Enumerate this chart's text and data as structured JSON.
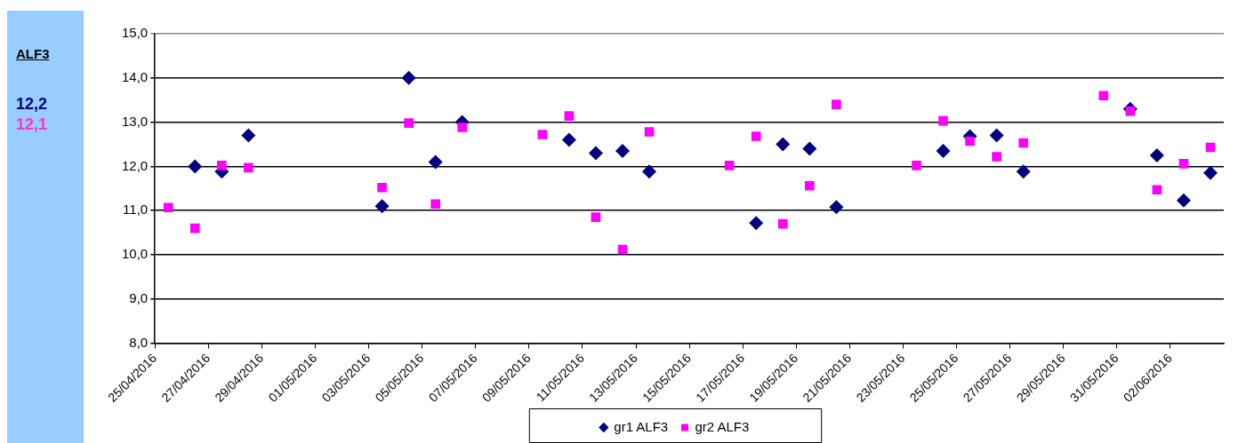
{
  "chart_data": {
    "type": "scatter",
    "annotations": [
      "ALF3",
      "12,2",
      "12,1"
    ],
    "series": [
      {
        "name": "gr1 ALF3",
        "color": "#000080",
        "marker": "diamond",
        "x": [
          "2016-04-26T12:00",
          "2016-04-27T12:00",
          "2016-04-28T12:00",
          "2016-05-03T12:00",
          "2016-05-04T12:00",
          "2016-05-05T12:00",
          "2016-05-06T12:00",
          "2016-05-10T12:00",
          "2016-05-11T12:00",
          "2016-05-12T12:00",
          "2016-05-13T12:00",
          "2016-05-17T12:00",
          "2016-05-18T12:00",
          "2016-05-19T12:00",
          "2016-05-20T12:00",
          "2016-05-24T12:00",
          "2016-05-25T12:00",
          "2016-05-26T12:00",
          "2016-05-27T12:00",
          "2016-05-31T12:00",
          "2016-06-01T12:00",
          "2016-06-02T12:00",
          "2016-06-03T12:00"
        ],
        "values": [
          12.0,
          11.88,
          12.7,
          11.1,
          14.0,
          12.1,
          13.0,
          12.6,
          12.3,
          12.35,
          11.88,
          10.72,
          12.5,
          12.4,
          11.08,
          12.35,
          12.68,
          12.7,
          11.88,
          13.3,
          12.25,
          11.23,
          11.85
        ]
      },
      {
        "name": "gr2 ALF3",
        "color": "#ff00ff",
        "marker": "square",
        "x": [
          "2016-04-25T12:00",
          "2016-04-26T12:00",
          "2016-04-27T12:00",
          "2016-04-28T12:00",
          "2016-05-03T12:00",
          "2016-05-04T12:00",
          "2016-05-05T12:00",
          "2016-05-06T12:00",
          "2016-05-09T12:00",
          "2016-05-10T12:00",
          "2016-05-11T12:00",
          "2016-05-12T12:00",
          "2016-05-13T12:00",
          "2016-05-16T12:00",
          "2016-05-17T12:00",
          "2016-05-18T12:00",
          "2016-05-19T12:00",
          "2016-05-20T12:00",
          "2016-05-23T12:00",
          "2016-05-24T12:00",
          "2016-05-25T12:00",
          "2016-05-26T12:00",
          "2016-05-27T12:00",
          "2016-05-30T12:00",
          "2016-05-31T12:00",
          "2016-06-01T12:00",
          "2016-06-02T12:00",
          "2016-06-03T12:00"
        ],
        "values": [
          11.07,
          10.6,
          12.02,
          11.97,
          11.52,
          12.98,
          11.15,
          12.88,
          12.72,
          13.14,
          10.85,
          10.12,
          12.78,
          12.02,
          12.68,
          10.7,
          11.56,
          13.4,
          12.02,
          13.03,
          12.57,
          12.22,
          12.53,
          13.6,
          13.25,
          11.47,
          12.06,
          12.43
        ]
      }
    ],
    "xlim": [
      "2016-04-25",
      "2016-06-04"
    ],
    "xticks": [
      {
        "value": "2016-04-25",
        "label": "25/04/2016"
      },
      {
        "value": "2016-04-27",
        "label": "27/04/2016"
      },
      {
        "value": "2016-04-29",
        "label": "29/04/2016"
      },
      {
        "value": "2016-05-01",
        "label": "01/05/2016"
      },
      {
        "value": "2016-05-03",
        "label": "03/05/2016"
      },
      {
        "value": "2016-05-05",
        "label": "05/05/2016"
      },
      {
        "value": "2016-05-07",
        "label": "07/05/2016"
      },
      {
        "value": "2016-05-09",
        "label": "09/05/2016"
      },
      {
        "value": "2016-05-11",
        "label": "11/05/2016"
      },
      {
        "value": "2016-05-13",
        "label": "13/05/2016"
      },
      {
        "value": "2016-05-15",
        "label": "15/05/2016"
      },
      {
        "value": "2016-05-17",
        "label": "17/05/2016"
      },
      {
        "value": "2016-05-19",
        "label": "19/05/2016"
      },
      {
        "value": "2016-05-21",
        "label": "21/05/2016"
      },
      {
        "value": "2016-05-23",
        "label": "23/05/2016"
      },
      {
        "value": "2016-05-25",
        "label": "25/05/2016"
      },
      {
        "value": "2016-05-27",
        "label": "27/05/2016"
      },
      {
        "value": "2016-05-29",
        "label": "29/05/2016"
      },
      {
        "value": "2016-05-31",
        "label": "31/05/2016"
      },
      {
        "value": "2016-06-02",
        "label": "02/06/2016"
      }
    ],
    "ylim": [
      8,
      15
    ],
    "yticks": [
      {
        "value": 8,
        "label": "8,0"
      },
      {
        "value": 9,
        "label": "9,0"
      },
      {
        "value": 10,
        "label": "10,0"
      },
      {
        "value": 11,
        "label": "11,0"
      },
      {
        "value": 12,
        "label": "12,0"
      },
      {
        "value": 13,
        "label": "13,0"
      },
      {
        "value": 14,
        "label": "14,0"
      },
      {
        "value": 15,
        "label": "15,0"
      }
    ],
    "grid": "y",
    "legend": "bottom"
  }
}
